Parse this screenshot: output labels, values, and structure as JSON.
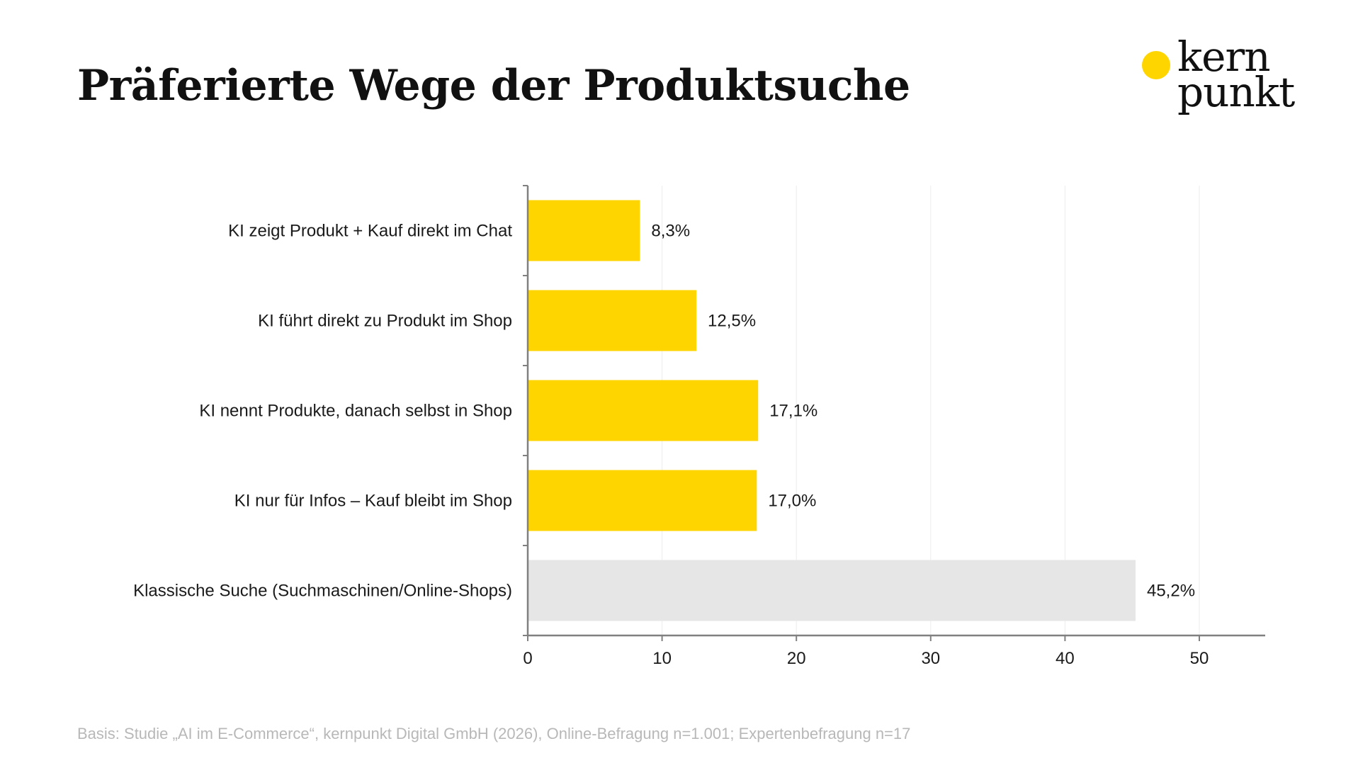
{
  "title": "Präferierte Wege der Produktsuche",
  "logo": {
    "line1": "kern",
    "line2": "punkt",
    "dot_color": "#FFD500"
  },
  "chart_data": {
    "type": "bar",
    "orientation": "horizontal",
    "categories": [
      "KI zeigt Produkt + Kauf direkt im Chat",
      "KI führt direkt zu Produkt im Shop",
      "KI nennt Produkte, danach selbst in Shop",
      "KI nur für Infos – Kauf bleibt im Shop",
      "Klassische Suche (Suchmaschinen/Online-Shops)"
    ],
    "values": [
      8.3,
      12.5,
      17.1,
      17.0,
      45.2
    ],
    "value_labels": [
      "8,3%",
      "12,5%",
      "17,1%",
      "17,0%",
      "45,2%"
    ],
    "bar_colors": [
      "#FFD500",
      "#FFD500",
      "#FFD500",
      "#FFD500",
      "#E6E6E6"
    ],
    "xlim": [
      0,
      55
    ],
    "xticks": [
      0,
      10,
      20,
      30,
      40,
      50
    ],
    "xlabel": "",
    "ylabel": "",
    "grid": "vertical",
    "legend": "none"
  },
  "footnote": "Basis: Studie „AI im E-Commerce“, kernpunkt Digital GmbH (2026), Online-Befragung n=1.001; Expertenbefragung n=17"
}
